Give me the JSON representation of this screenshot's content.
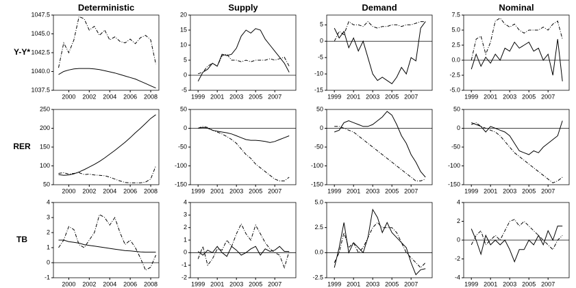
{
  "chart_data": [
    {
      "type": "line",
      "title": "Deterministic",
      "ylabel": "Y-Y*",
      "x": [
        1999,
        1999.5,
        2000,
        2000.5,
        2001,
        2001.5,
        2002,
        2002.5,
        2003,
        2003.5,
        2004,
        2004.5,
        2005,
        2005.5,
        2006,
        2006.5,
        2007,
        2007.5,
        2008,
        2008.5
      ],
      "xlim": [
        1998.5,
        2008.8
      ],
      "xticks": [
        2000,
        2002,
        2004,
        2006,
        2008
      ],
      "ylim": [
        1037.5,
        1047.5
      ],
      "yticks": [
        1037.5,
        {
          "value": 1040,
          "label": "1040.0"
        },
        1042.5,
        {
          "value": 1045,
          "label": "1045.0"
        },
        1047.5
      ],
      "series": [
        {
          "style": "solid",
          "color": "#000",
          "values": [
            1039.6,
            1040.0,
            1040.2,
            1040.35,
            1040.4,
            1040.4,
            1040.4,
            1040.35,
            1040.25,
            1040.1,
            1039.95,
            1039.8,
            1039.6,
            1039.4,
            1039.2,
            1039.0,
            1038.7,
            1038.4,
            1038.1,
            1037.8
          ]
        },
        {
          "style": "dashdot",
          "color": "#000",
          "values": [
            1040.5,
            1043.8,
            1042.5,
            1044.2,
            1047.3,
            1047.0,
            1045.5,
            1046.0,
            1044.8,
            1045.5,
            1044.2,
            1044.6,
            1044.0,
            1043.8,
            1044.3,
            1043.7,
            1044.5,
            1044.8,
            1044.2,
            1041.0
          ]
        }
      ]
    },
    {
      "type": "line",
      "title": "Supply",
      "x": [
        1999,
        1999.5,
        2000,
        2000.5,
        2001,
        2001.5,
        2002,
        2002.5,
        2003,
        2003.5,
        2004,
        2004.5,
        2005,
        2005.5,
        2006,
        2006.5,
        2007,
        2007.5,
        2008,
        2008.5
      ],
      "xlim": [
        1998.2,
        2009.2
      ],
      "xticks": [
        1999,
        2001,
        2003,
        2005,
        2007
      ],
      "ylim": [
        -5,
        20
      ],
      "yticks": [
        -5,
        0,
        5,
        10,
        15,
        20
      ],
      "hline": 0,
      "series": [
        {
          "style": "solid",
          "color": "#000",
          "values": [
            -2,
            1,
            2,
            4,
            3,
            7,
            6.5,
            7,
            9,
            13,
            15,
            14,
            15.5,
            15,
            12,
            10,
            8,
            6,
            4,
            1
          ]
        },
        {
          "style": "dashdot",
          "color": "#000",
          "values": [
            0.5,
            1,
            3,
            4,
            3,
            6.5,
            7,
            5,
            5,
            4.5,
            5,
            4.5,
            5,
            5,
            5,
            5.5,
            5,
            5.5,
            6,
            3
          ]
        }
      ]
    },
    {
      "type": "line",
      "title": "Demand",
      "x": [
        1999,
        1999.5,
        2000,
        2000.5,
        2001,
        2001.5,
        2002,
        2002.5,
        2003,
        2003.5,
        2004,
        2004.5,
        2005,
        2005.5,
        2006,
        2006.5,
        2007,
        2007.5,
        2008,
        2008.5
      ],
      "xlim": [
        1998.2,
        2009.2
      ],
      "xticks": [
        1999,
        2001,
        2003,
        2005,
        2007
      ],
      "ylim": [
        -15,
        8
      ],
      "yticks": [
        -15,
        -10,
        -5,
        0,
        5
      ],
      "hline": 0,
      "series": [
        {
          "style": "solid",
          "color": "#000",
          "values": [
            4,
            1,
            3,
            -2,
            1,
            -3,
            0,
            -5,
            -10,
            -12,
            -11,
            -12,
            -13,
            -11,
            -8,
            -10,
            -5,
            -6,
            4,
            6
          ]
        },
        {
          "style": "dashdot",
          "color": "#000",
          "values": [
            0,
            3,
            2,
            6,
            5,
            5,
            4.5,
            6,
            4.5,
            4,
            4.5,
            4.5,
            5,
            5,
            4.5,
            5,
            5,
            5.5,
            6,
            6
          ]
        }
      ]
    },
    {
      "type": "line",
      "title": "Nominal",
      "x": [
        1999,
        1999.5,
        2000,
        2000.5,
        2001,
        2001.5,
        2002,
        2002.5,
        2003,
        2003.5,
        2004,
        2004.5,
        2005,
        2005.5,
        2006,
        2006.5,
        2007,
        2007.5,
        2008,
        2008.5
      ],
      "xlim": [
        1998.2,
        2009.2
      ],
      "xticks": [
        1999,
        2001,
        2003,
        2005,
        2007
      ],
      "ylim": [
        -5,
        7.5
      ],
      "yticks": [
        {
          "value": -5,
          "label": "-5.0"
        },
        -2.5,
        {
          "value": 0,
          "label": "0.0"
        },
        2.5,
        {
          "value": 5,
          "label": "5.0"
        },
        7.5
      ],
      "hline": 0,
      "series": [
        {
          "style": "solid",
          "color": "#000",
          "values": [
            -1.5,
            1,
            -1,
            0.5,
            -0.5,
            1,
            0,
            2,
            1.5,
            3,
            2,
            2.5,
            3,
            1.5,
            2,
            0,
            1,
            -2.5,
            3.5,
            -3.5
          ]
        },
        {
          "style": "dashdot",
          "color": "#000",
          "values": [
            0,
            3.5,
            4,
            1,
            3,
            6.5,
            7,
            6,
            5.5,
            6,
            5,
            4.5,
            5,
            5,
            5,
            5.5,
            5,
            6,
            6.5,
            3.5
          ]
        }
      ]
    },
    {
      "type": "line",
      "ylabel": "RER",
      "x": [
        1999,
        1999.5,
        2000,
        2000.5,
        2001,
        2001.5,
        2002,
        2002.5,
        2003,
        2003.5,
        2004,
        2004.5,
        2005,
        2005.5,
        2006,
        2006.5,
        2007,
        2007.5,
        2008,
        2008.5
      ],
      "xlim": [
        1998.5,
        2008.8
      ],
      "xticks": [
        2000,
        2002,
        2004,
        2006,
        2008
      ],
      "ylim": [
        50,
        250
      ],
      "yticks": [
        50,
        100,
        150,
        200,
        250
      ],
      "series": [
        {
          "style": "solid",
          "color": "#000",
          "values": [
            77,
            75,
            76,
            79,
            84,
            90,
            97,
            104,
            112,
            121,
            131,
            141,
            152,
            163,
            175,
            188,
            200,
            213,
            226,
            236
          ]
        },
        {
          "style": "dashdot",
          "color": "#000",
          "values": [
            80,
            82,
            78,
            80,
            82,
            77,
            78,
            76,
            75,
            74,
            70,
            65,
            60,
            56,
            55,
            55,
            55,
            57,
            65,
            100
          ]
        }
      ]
    },
    {
      "type": "line",
      "x": [
        1999,
        1999.5,
        2000,
        2000.5,
        2001,
        2001.5,
        2002,
        2002.5,
        2003,
        2003.5,
        2004,
        2004.5,
        2005,
        2005.5,
        2006,
        2006.5,
        2007,
        2007.5,
        2008,
        2008.5
      ],
      "xlim": [
        1998.2,
        2009.2
      ],
      "xticks": [
        1999,
        2001,
        2003,
        2005,
        2007
      ],
      "ylim": [
        -150,
        50
      ],
      "yticks": [
        -150,
        -100,
        -50,
        0,
        50
      ],
      "hline": 0,
      "series": [
        {
          "style": "solid",
          "color": "#000",
          "values": [
            0,
            2,
            0,
            -5,
            -8,
            -10,
            -12,
            -15,
            -20,
            -25,
            -30,
            -32,
            -32,
            -33,
            -35,
            -38,
            -35,
            -30,
            -25,
            -20
          ]
        },
        {
          "style": "dashdot",
          "color": "#000",
          "values": [
            0,
            5,
            2,
            -5,
            -10,
            -15,
            -22,
            -30,
            -40,
            -55,
            -70,
            -80,
            -95,
            -105,
            -115,
            -125,
            -135,
            -140,
            -140,
            -130
          ]
        }
      ]
    },
    {
      "type": "line",
      "x": [
        1999,
        1999.5,
        2000,
        2000.5,
        2001,
        2001.5,
        2002,
        2002.5,
        2003,
        2003.5,
        2004,
        2004.5,
        2005,
        2005.5,
        2006,
        2006.5,
        2007,
        2007.5,
        2008,
        2008.5
      ],
      "xlim": [
        1998.2,
        2009.2
      ],
      "xticks": [
        1999,
        2001,
        2003,
        2005,
        2007
      ],
      "ylim": [
        -150,
        50
      ],
      "yticks": [
        -150,
        -100,
        -50,
        0,
        50
      ],
      "hline": 0,
      "series": [
        {
          "style": "solid",
          "color": "#000",
          "values": [
            -10,
            -5,
            15,
            20,
            15,
            10,
            5,
            5,
            10,
            20,
            30,
            45,
            35,
            10,
            -20,
            -40,
            -70,
            -90,
            -115,
            -130
          ]
        },
        {
          "style": "dashdot",
          "color": "#000",
          "values": [
            5,
            5,
            0,
            -5,
            -10,
            -20,
            -30,
            -40,
            -50,
            -60,
            -70,
            -80,
            -90,
            -100,
            -110,
            -120,
            -130,
            -140,
            -140,
            -135
          ]
        }
      ]
    },
    {
      "type": "line",
      "x": [
        1999,
        1999.5,
        2000,
        2000.5,
        2001,
        2001.5,
        2002,
        2002.5,
        2003,
        2003.5,
        2004,
        2004.5,
        2005,
        2005.5,
        2006,
        2006.5,
        2007,
        2007.5,
        2008,
        2008.5
      ],
      "xlim": [
        1998.2,
        2009.2
      ],
      "xticks": [
        1999,
        2001,
        2003,
        2005,
        2007
      ],
      "ylim": [
        -150,
        50
      ],
      "yticks": [
        -150,
        -100,
        -50,
        0,
        50
      ],
      "hline": 0,
      "series": [
        {
          "style": "solid",
          "color": "#000",
          "values": [
            15,
            10,
            5,
            -10,
            5,
            0,
            -5,
            -10,
            -20,
            -40,
            -60,
            -65,
            -70,
            -60,
            -65,
            -50,
            -40,
            -30,
            -20,
            20
          ]
        },
        {
          "style": "dashdot",
          "color": "#000",
          "values": [
            10,
            15,
            5,
            0,
            -5,
            -10,
            -20,
            -35,
            -50,
            -65,
            -75,
            -85,
            -95,
            -105,
            -115,
            -125,
            -135,
            -145,
            -140,
            -130
          ]
        }
      ]
    },
    {
      "type": "line",
      "ylabel": "TB",
      "x": [
        1999,
        1999.5,
        2000,
        2000.5,
        2001,
        2001.5,
        2002,
        2002.5,
        2003,
        2003.5,
        2004,
        2004.5,
        2005,
        2005.5,
        2006,
        2006.5,
        2007,
        2007.5,
        2008,
        2008.5
      ],
      "xlim": [
        1998.5,
        2008.8
      ],
      "xticks": [
        2000,
        2002,
        2004,
        2006,
        2008
      ],
      "ylim": [
        -1,
        4
      ],
      "yticks": [
        -1,
        0,
        1,
        2,
        3,
        4
      ],
      "hline": 0,
      "series": [
        {
          "style": "solid",
          "color": "#000",
          "values": [
            1.5,
            1.5,
            1.4,
            1.35,
            1.3,
            1.2,
            1.15,
            1.1,
            1.05,
            1.0,
            0.95,
            0.9,
            0.85,
            0.8,
            0.78,
            0.75,
            0.72,
            0.7,
            0.7,
            0.7
          ]
        },
        {
          "style": "dashdot",
          "color": "#000",
          "values": [
            1.0,
            1.5,
            2.4,
            2.2,
            1.2,
            1.0,
            1.5,
            2.0,
            3.2,
            3.0,
            2.5,
            3.0,
            2.0,
            1.2,
            1.5,
            1.0,
            0.3,
            -0.5,
            -0.3,
            0.5
          ]
        }
      ]
    },
    {
      "type": "line",
      "x": [
        1999,
        1999.5,
        2000,
        2000.5,
        2001,
        2001.5,
        2002,
        2002.5,
        2003,
        2003.5,
        2004,
        2004.5,
        2005,
        2005.5,
        2006,
        2006.5,
        2007,
        2007.5,
        2008,
        2008.5
      ],
      "xlim": [
        1998.2,
        2009.2
      ],
      "xticks": [
        1999,
        2001,
        2003,
        2005,
        2007
      ],
      "ylim": [
        -2,
        4
      ],
      "yticks": [
        -2,
        -1,
        0,
        1,
        2,
        3,
        4
      ],
      "hline": 0,
      "series": [
        {
          "style": "solid",
          "color": "#000",
          "values": [
            0.1,
            -0.2,
            0.2,
            0,
            0.5,
            0,
            -0.3,
            0.5,
            0.2,
            -0.2,
            0,
            0.3,
            0.5,
            -0.2,
            0.3,
            0.1,
            0.2,
            0.5,
            0.1,
            0.1
          ]
        },
        {
          "style": "dashdot",
          "color": "#000",
          "values": [
            -0.5,
            0.5,
            -1,
            -0.5,
            0.3,
            0.2,
            1,
            0.5,
            1.5,
            2.3,
            1.5,
            1.0,
            2.2,
            1.5,
            0.8,
            0.3,
            0,
            -0.2,
            -1.2,
            0.1
          ]
        }
      ]
    },
    {
      "type": "line",
      "x": [
        1999,
        1999.5,
        2000,
        2000.5,
        2001,
        2001.5,
        2002,
        2002.5,
        2003,
        2003.5,
        2004,
        2004.5,
        2005,
        2005.5,
        2006,
        2006.5,
        2007,
        2007.5,
        2008,
        2008.5
      ],
      "xlim": [
        1998.2,
        2009.2
      ],
      "xticks": [
        1999,
        2001,
        2003,
        2005,
        2007
      ],
      "ylim": [
        -2.5,
        5
      ],
      "yticks": [
        -2.5,
        {
          "value": 0,
          "label": "0.0"
        },
        2.5,
        {
          "value": 5,
          "label": "5.0"
        }
      ],
      "hline": 0,
      "series": [
        {
          "style": "solid",
          "color": "#000",
          "values": [
            -1.5,
            0.5,
            3,
            0,
            1,
            0.5,
            0,
            1.5,
            4.3,
            3.5,
            2,
            3,
            2,
            1.5,
            1,
            0.5,
            -1,
            -2.2,
            -1.7,
            -1.6
          ]
        },
        {
          "style": "dashdot",
          "color": "#000",
          "values": [
            -1,
            0,
            2,
            0.5,
            1,
            0,
            0.5,
            1.5,
            2.5,
            3,
            2.5,
            2.5,
            2.5,
            2,
            1,
            0,
            -0.5,
            -1,
            -1.5,
            -1
          ]
        }
      ]
    },
    {
      "type": "line",
      "x": [
        1999,
        1999.5,
        2000,
        2000.5,
        2001,
        2001.5,
        2002,
        2002.5,
        2003,
        2003.5,
        2004,
        2004.5,
        2005,
        2005.5,
        2006,
        2006.5,
        2007,
        2007.5,
        2008,
        2008.5
      ],
      "xlim": [
        1998.2,
        2009.2
      ],
      "xticks": [
        1999,
        2001,
        2003,
        2005,
        2007
      ],
      "ylim": [
        -4,
        4
      ],
      "yticks": [
        -4,
        -2,
        0,
        2,
        4
      ],
      "hline": 0,
      "series": [
        {
          "style": "solid",
          "color": "#000",
          "values": [
            1.2,
            0,
            -1.5,
            0.5,
            -0.5,
            0,
            -0.5,
            0,
            -1,
            -2.3,
            -1,
            -1,
            0,
            -0.5,
            0.5,
            -0.5,
            1,
            0,
            1.5,
            1.5
          ]
        },
        {
          "style": "dashdot",
          "color": "#000",
          "values": [
            -0.5,
            0.5,
            1,
            -0.5,
            0,
            0.5,
            0,
            1,
            2,
            2.2,
            1.5,
            2,
            1.5,
            1,
            0.5,
            0,
            -0.5,
            -1,
            0,
            0.5
          ]
        }
      ]
    }
  ]
}
